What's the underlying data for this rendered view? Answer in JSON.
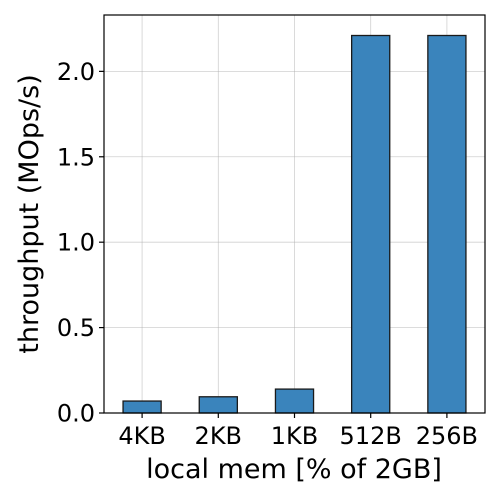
{
  "chart_data": {
    "type": "bar",
    "categories": [
      "4KB",
      "2KB",
      "1KB",
      "512B",
      "256B"
    ],
    "values": [
      0.07,
      0.095,
      0.14,
      2.21,
      2.21
    ],
    "title": "",
    "xlabel": "local mem [% of 2GB]",
    "ylabel": "throughput (MOps/s)",
    "ylim": [
      0,
      2.33
    ],
    "yticks": [
      0.0,
      0.5,
      1.0,
      1.5,
      2.0
    ],
    "ytick_labels": [
      "0.0",
      "0.5",
      "1.0",
      "1.5",
      "2.0"
    ],
    "grid": true,
    "bar_color": "#3a84bc",
    "edge_color": "#1a1a1a"
  }
}
